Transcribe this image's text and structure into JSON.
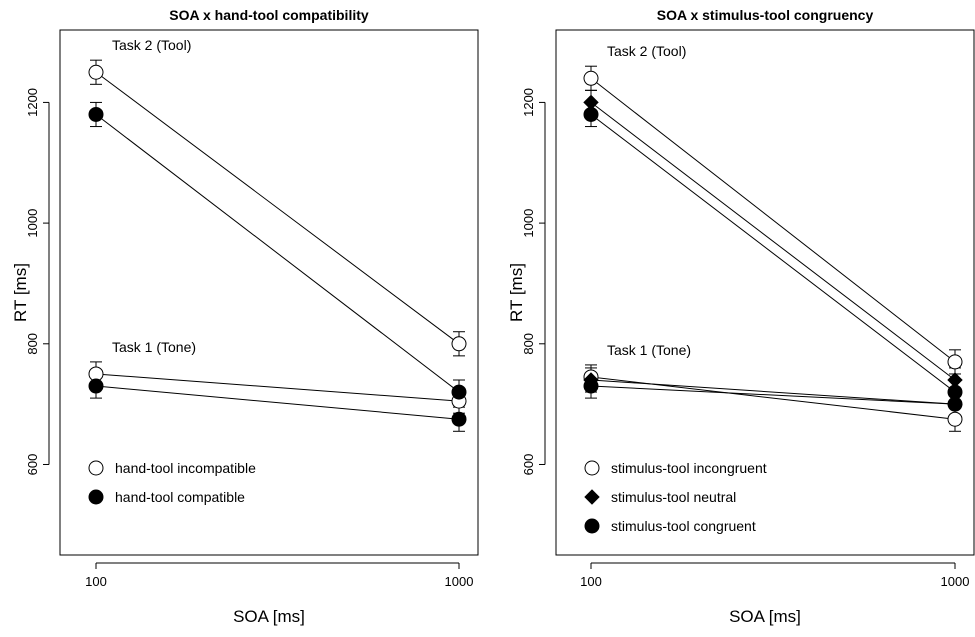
{
  "chart_data": [
    {
      "type": "line",
      "title": "SOA x hand-tool compatibility",
      "xlabel": "SOA [ms]",
      "ylabel": "RT [ms]",
      "x": [
        100,
        1000
      ],
      "x_ticks": [
        "100",
        "1000"
      ],
      "y_ticks": [
        "600",
        "800",
        "1000",
        "1200"
      ],
      "ylim": [
        450,
        1320
      ],
      "grid": false,
      "legend_position": "bottom-left",
      "task_labels": [
        {
          "text": "Task 2 (Tool)",
          "anchor_series": "hand-tool incompatible",
          "task": "task2"
        },
        {
          "text": "Task 1 (Tone)",
          "anchor_series": "hand-tool incompatible",
          "task": "task1"
        }
      ],
      "series": [
        {
          "name": "hand-tool incompatible",
          "marker": "open-circle",
          "task2": [
            1250,
            800
          ],
          "task1": [
            750,
            705
          ],
          "error": 20
        },
        {
          "name": "hand-tool compatible",
          "marker": "filled-circle",
          "task2": [
            1180,
            720
          ],
          "task1": [
            730,
            675
          ],
          "error": 20
        }
      ]
    },
    {
      "type": "line",
      "title": "SOA x stimulus-tool congruency",
      "xlabel": "SOA [ms]",
      "ylabel": "RT [ms]",
      "x": [
        100,
        1000
      ],
      "x_ticks": [
        "100",
        "1000"
      ],
      "y_ticks": [
        "600",
        "800",
        "1000",
        "1200"
      ],
      "ylim": [
        450,
        1320
      ],
      "grid": false,
      "legend_position": "bottom-left",
      "task_labels": [
        {
          "text": "Task 2 (Tool)",
          "anchor_series": "stimulus-tool incongruent",
          "task": "task2"
        },
        {
          "text": "Task 1 (Tone)",
          "anchor_series": "stimulus-tool incongruent",
          "task": "task1"
        }
      ],
      "series": [
        {
          "name": "stimulus-tool incongruent",
          "marker": "open-circle",
          "task2": [
            1240,
            770
          ],
          "task1": [
            745,
            675
          ],
          "error": 20
        },
        {
          "name": "stimulus-tool neutral",
          "marker": "filled-diamond",
          "task2": [
            1200,
            740
          ],
          "task1": [
            740,
            700
          ],
          "error": 20
        },
        {
          "name": "stimulus-tool congruent",
          "marker": "filled-circle",
          "task2": [
            1180,
            720
          ],
          "task1": [
            730,
            700
          ],
          "error": 20
        }
      ]
    }
  ]
}
